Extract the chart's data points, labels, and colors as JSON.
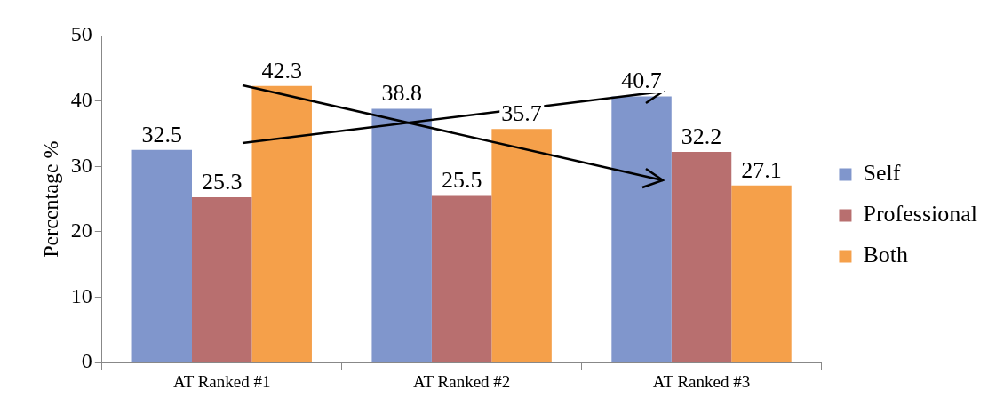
{
  "chart_data": {
    "type": "bar",
    "ylabel": "Percentage %",
    "categories": [
      "AT Ranked #1",
      "AT Ranked #2",
      "AT Ranked #3"
    ],
    "series": [
      {
        "name": "Self",
        "color": "#8096cc",
        "values": [
          32.5,
          38.8,
          40.7
        ]
      },
      {
        "name": "Professional",
        "color": "#b86f6f",
        "values": [
          25.3,
          25.5,
          32.2
        ]
      },
      {
        "name": "Both",
        "color": "#f5a04a",
        "values": [
          42.3,
          35.7,
          27.1
        ]
      }
    ],
    "ylim": [
      0,
      50
    ],
    "yticks": [
      0,
      10,
      20,
      30,
      40,
      50
    ],
    "grid": false,
    "legend": "right",
    "data_labels": true
  }
}
